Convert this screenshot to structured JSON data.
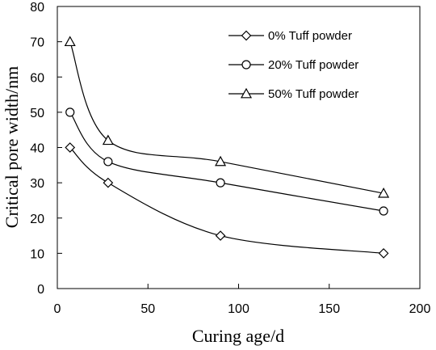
{
  "chart_data": {
    "type": "line",
    "xlabel": "Curing age/d",
    "ylabel": "Critical pore width/nm",
    "xlim": [
      0,
      200
    ],
    "ylim": [
      0,
      80
    ],
    "xticks": [
      "0",
      "50",
      "100",
      "150",
      "200"
    ],
    "yticks": [
      "0",
      "10",
      "20",
      "30",
      "40",
      "50",
      "60",
      "70",
      "80"
    ],
    "grid": false,
    "legend_position": "top-right",
    "x": [
      7,
      28,
      90,
      180
    ],
    "series": [
      {
        "name": "0% Tuff powder",
        "marker": "diamond",
        "values": [
          40,
          30,
          15,
          10
        ]
      },
      {
        "name": "20% Tuff powder",
        "marker": "circle",
        "values": [
          50,
          36,
          30,
          22
        ]
      },
      {
        "name": "50% Tuff powder",
        "marker": "triangle",
        "values": [
          70,
          42,
          36,
          27
        ]
      }
    ]
  }
}
